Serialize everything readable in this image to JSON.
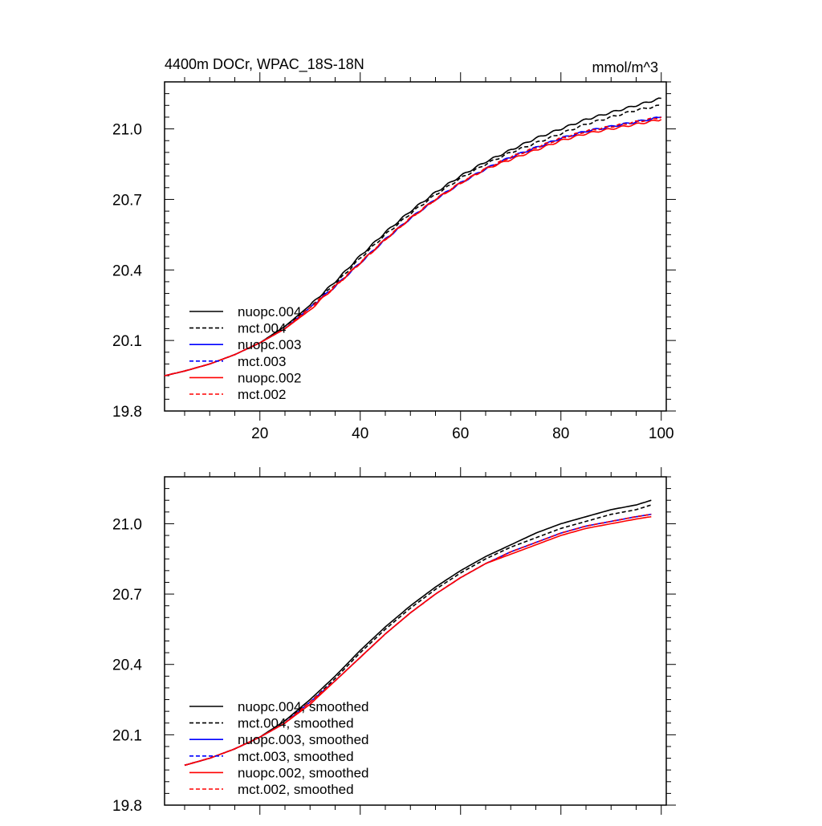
{
  "chart_data": [
    {
      "type": "line",
      "title": "4400m DOCr, WPAC_18S-18N",
      "units": "mmol/m^3",
      "xlim": [
        1,
        101
      ],
      "ylim": [
        19.8,
        21.2
      ],
      "x_ticks": [
        20,
        40,
        60,
        80,
        100
      ],
      "y_ticks": [
        "19.8",
        "20.1",
        "20.4",
        "20.7",
        "21.0"
      ],
      "show_x_tick_labels": true,
      "legend_position": "lower-left",
      "x": [
        1,
        5,
        10,
        15,
        20,
        25,
        30,
        35,
        40,
        45,
        50,
        55,
        60,
        65,
        70,
        75,
        80,
        85,
        90,
        95,
        100
      ],
      "series": [
        {
          "name": "nuopc.004",
          "color": "#000000",
          "dash": false,
          "noisy": true,
          "values": [
            19.95,
            19.97,
            20.0,
            20.04,
            20.09,
            20.16,
            20.25,
            20.35,
            20.46,
            20.56,
            20.65,
            20.73,
            20.8,
            20.86,
            20.91,
            20.96,
            21.0,
            21.04,
            21.07,
            21.1,
            21.13
          ]
        },
        {
          "name": "mct.004",
          "color": "#000000",
          "dash": true,
          "noisy": true,
          "values": [
            19.95,
            19.97,
            20.0,
            20.04,
            20.09,
            20.16,
            20.24,
            20.34,
            20.45,
            20.55,
            20.64,
            20.72,
            20.79,
            20.85,
            20.9,
            20.94,
            20.98,
            21.02,
            21.05,
            21.08,
            21.1
          ]
        },
        {
          "name": "nuopc.003",
          "color": "#0000ff",
          "dash": false,
          "noisy": true,
          "values": [
            19.95,
            19.97,
            20.0,
            20.04,
            20.09,
            20.15,
            20.24,
            20.33,
            20.43,
            20.53,
            20.62,
            20.7,
            20.77,
            20.83,
            20.88,
            20.92,
            20.96,
            20.99,
            21.01,
            21.03,
            21.05
          ]
        },
        {
          "name": "mct.003",
          "color": "#0000ff",
          "dash": true,
          "noisy": true,
          "values": [
            19.95,
            19.97,
            20.0,
            20.04,
            20.09,
            20.15,
            20.24,
            20.33,
            20.43,
            20.53,
            20.62,
            20.7,
            20.77,
            20.83,
            20.88,
            20.92,
            20.96,
            20.99,
            21.01,
            21.03,
            21.05
          ]
        },
        {
          "name": "nuopc.002",
          "color": "#ff0000",
          "dash": false,
          "noisy": true,
          "values": [
            19.95,
            19.97,
            20.0,
            20.04,
            20.09,
            20.15,
            20.23,
            20.33,
            20.43,
            20.53,
            20.62,
            20.7,
            20.77,
            20.83,
            20.87,
            20.91,
            20.95,
            20.98,
            21.0,
            21.02,
            21.04
          ]
        },
        {
          "name": "mct.002",
          "color": "#ff0000",
          "dash": true,
          "noisy": true,
          "values": [
            19.95,
            19.97,
            20.0,
            20.04,
            20.09,
            20.15,
            20.24,
            20.33,
            20.43,
            20.53,
            20.62,
            20.7,
            20.77,
            20.83,
            20.88,
            20.92,
            20.96,
            20.99,
            21.01,
            21.03,
            21.05
          ]
        }
      ]
    },
    {
      "type": "line",
      "title": "",
      "units": "",
      "xlim": [
        1,
        101
      ],
      "ylim": [
        19.8,
        21.2
      ],
      "x_ticks": [
        20,
        40,
        60,
        80,
        100
      ],
      "y_ticks": [
        "19.8",
        "20.1",
        "20.4",
        "20.7",
        "21.0"
      ],
      "show_x_tick_labels": false,
      "legend_position": "lower-left",
      "x": [
        5,
        10,
        15,
        20,
        25,
        30,
        35,
        40,
        45,
        50,
        55,
        60,
        65,
        70,
        75,
        80,
        85,
        90,
        95,
        98
      ],
      "series": [
        {
          "name": "nuopc.004, smoothed",
          "color": "#000000",
          "dash": false,
          "noisy": false,
          "values": [
            19.97,
            20.0,
            20.04,
            20.09,
            20.16,
            20.25,
            20.35,
            20.46,
            20.56,
            20.65,
            20.73,
            20.8,
            20.86,
            20.91,
            20.96,
            21.0,
            21.03,
            21.06,
            21.08,
            21.1
          ]
        },
        {
          "name": "mct.004, smoothed",
          "color": "#000000",
          "dash": true,
          "noisy": false,
          "values": [
            19.97,
            20.0,
            20.04,
            20.09,
            20.16,
            20.24,
            20.34,
            20.45,
            20.55,
            20.64,
            20.72,
            20.79,
            20.85,
            20.9,
            20.94,
            20.98,
            21.01,
            21.04,
            21.06,
            21.08
          ]
        },
        {
          "name": "nuopc.003, smoothed",
          "color": "#0000ff",
          "dash": false,
          "noisy": false,
          "values": [
            19.97,
            20.0,
            20.04,
            20.09,
            20.15,
            20.24,
            20.33,
            20.43,
            20.53,
            20.62,
            20.7,
            20.77,
            20.83,
            20.88,
            20.92,
            20.96,
            20.99,
            21.01,
            21.03,
            21.04
          ]
        },
        {
          "name": "mct.003, smoothed",
          "color": "#0000ff",
          "dash": true,
          "noisy": false,
          "values": [
            19.97,
            20.0,
            20.04,
            20.09,
            20.15,
            20.24,
            20.33,
            20.43,
            20.53,
            20.62,
            20.7,
            20.77,
            20.83,
            20.88,
            20.92,
            20.96,
            20.99,
            21.01,
            21.03,
            21.04
          ]
        },
        {
          "name": "nuopc.002, smoothed",
          "color": "#ff0000",
          "dash": false,
          "noisy": false,
          "values": [
            19.97,
            20.0,
            20.04,
            20.09,
            20.15,
            20.23,
            20.33,
            20.43,
            20.53,
            20.62,
            20.7,
            20.77,
            20.83,
            20.87,
            20.91,
            20.95,
            20.98,
            21.0,
            21.02,
            21.03
          ]
        },
        {
          "name": "mct.002, smoothed",
          "color": "#ff0000",
          "dash": true,
          "noisy": false,
          "values": [
            19.97,
            20.0,
            20.04,
            20.09,
            20.15,
            20.24,
            20.33,
            20.43,
            20.53,
            20.62,
            20.7,
            20.77,
            20.83,
            20.88,
            20.92,
            20.96,
            20.99,
            21.01,
            21.03,
            21.04
          ]
        }
      ]
    }
  ]
}
